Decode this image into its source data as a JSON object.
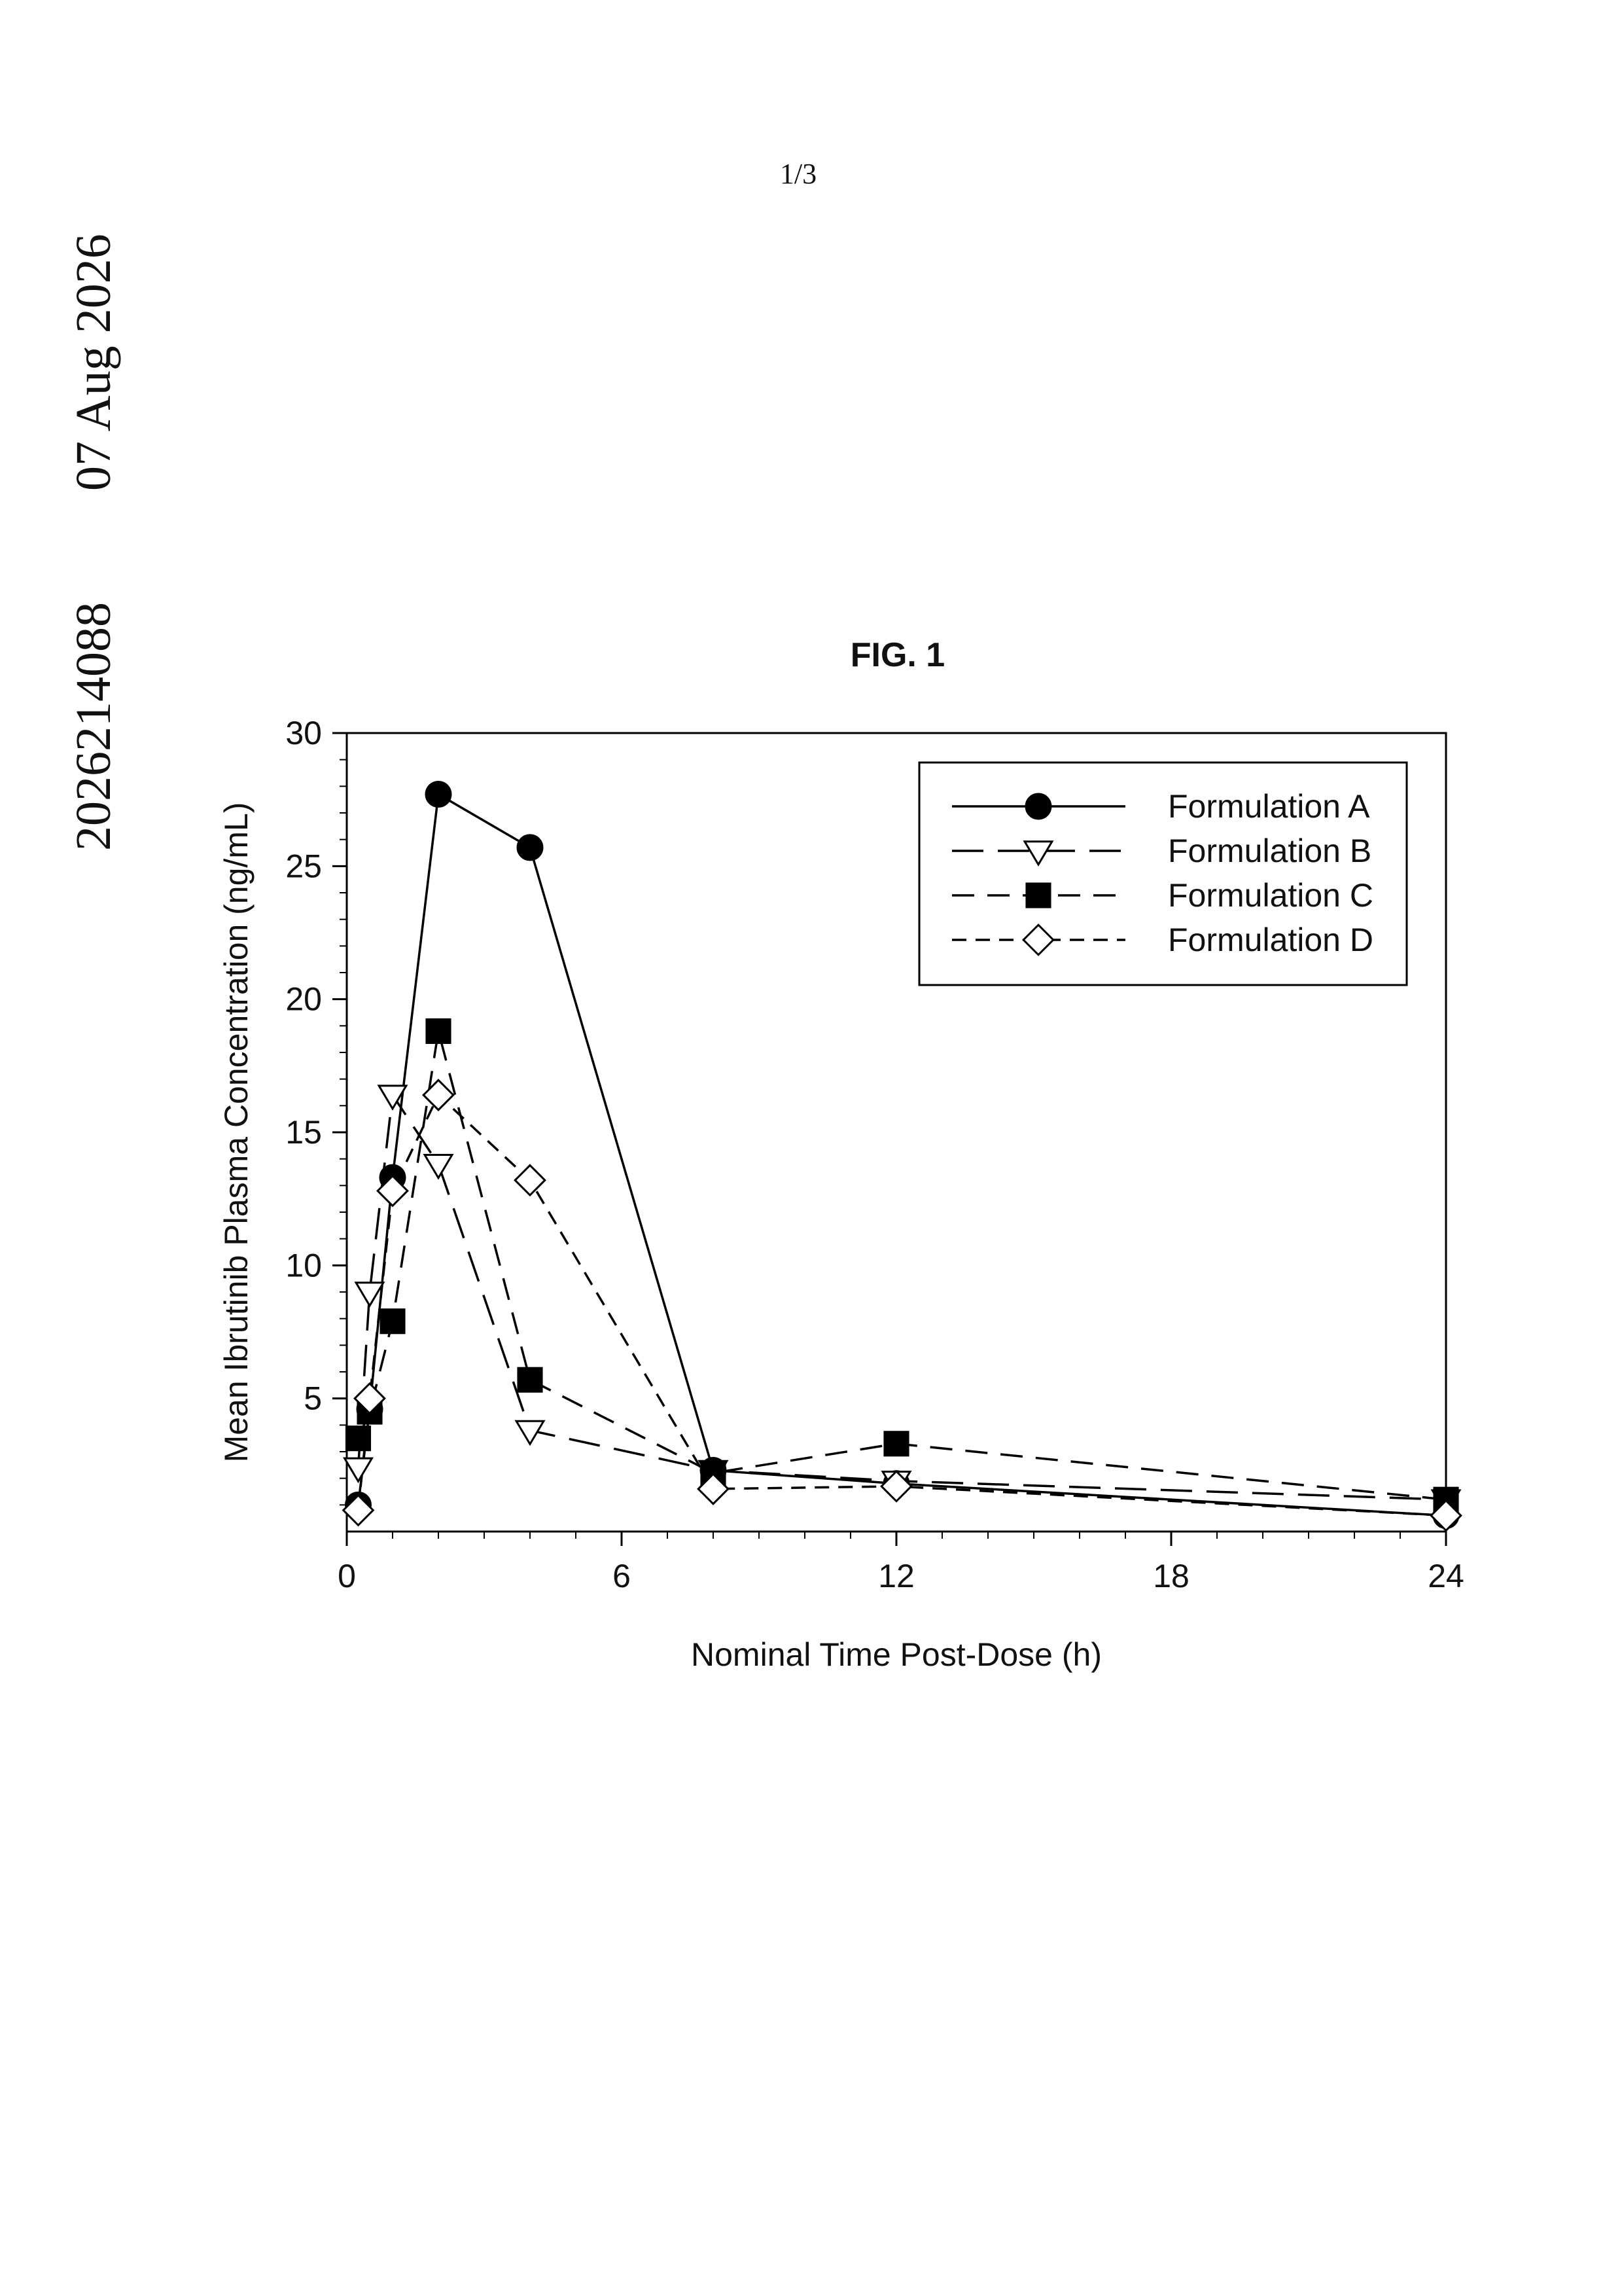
{
  "page": {
    "page_number": "1/3",
    "side_date": "07 Aug 2026",
    "side_number": "2026214088"
  },
  "chart_data": {
    "type": "line",
    "title": "FIG. 1",
    "xlabel": "Nominal Time Post-Dose (h)",
    "ylabel": "Mean Ibrutinib Plasma Concentration (ng/mL)",
    "xlim": [
      0,
      24
    ],
    "ylim": [
      0,
      30
    ],
    "x_ticks": [
      0,
      6,
      12,
      18,
      24
    ],
    "y_ticks": [
      5,
      10,
      15,
      20,
      25,
      30
    ],
    "x_tick_labels": [
      "0",
      "6",
      "12",
      "18",
      "24"
    ],
    "y_tick_labels": [
      "5",
      "10",
      "15",
      "20",
      "25",
      "30"
    ],
    "grid": false,
    "legend_position": "top-right",
    "series": [
      {
        "name": "Formulation A",
        "marker": "filled-circle",
        "line_style": "solid",
        "color": "#000000",
        "x": [
          0.25,
          0.5,
          1,
          2,
          4,
          8,
          12,
          24
        ],
        "y": [
          1.0,
          4.6,
          13.3,
          27.7,
          25.7,
          2.3,
          1.8,
          0.6
        ]
      },
      {
        "name": "Formulation B",
        "marker": "open-triangle-down",
        "line_style": "long-dash",
        "color": "#000000",
        "x": [
          0.25,
          0.5,
          1,
          2,
          4,
          8,
          12,
          24
        ],
        "y": [
          2.4,
          9.0,
          16.4,
          13.8,
          3.8,
          2.3,
          1.9,
          1.2
        ]
      },
      {
        "name": "Formulation C",
        "marker": "filled-square",
        "line_style": "dash",
        "color": "#000000",
        "x": [
          0.25,
          0.5,
          1,
          2,
          4,
          8,
          12,
          24
        ],
        "y": [
          3.5,
          4.5,
          7.9,
          18.8,
          5.7,
          2.2,
          3.3,
          1.2
        ]
      },
      {
        "name": "Formulation D",
        "marker": "open-diamond",
        "line_style": "short-dash",
        "color": "#000000",
        "x": [
          0.25,
          0.5,
          1,
          2,
          4,
          8,
          12,
          24
        ],
        "y": [
          0.8,
          5.0,
          12.8,
          16.4,
          13.2,
          1.6,
          1.7,
          0.6
        ]
      }
    ]
  }
}
